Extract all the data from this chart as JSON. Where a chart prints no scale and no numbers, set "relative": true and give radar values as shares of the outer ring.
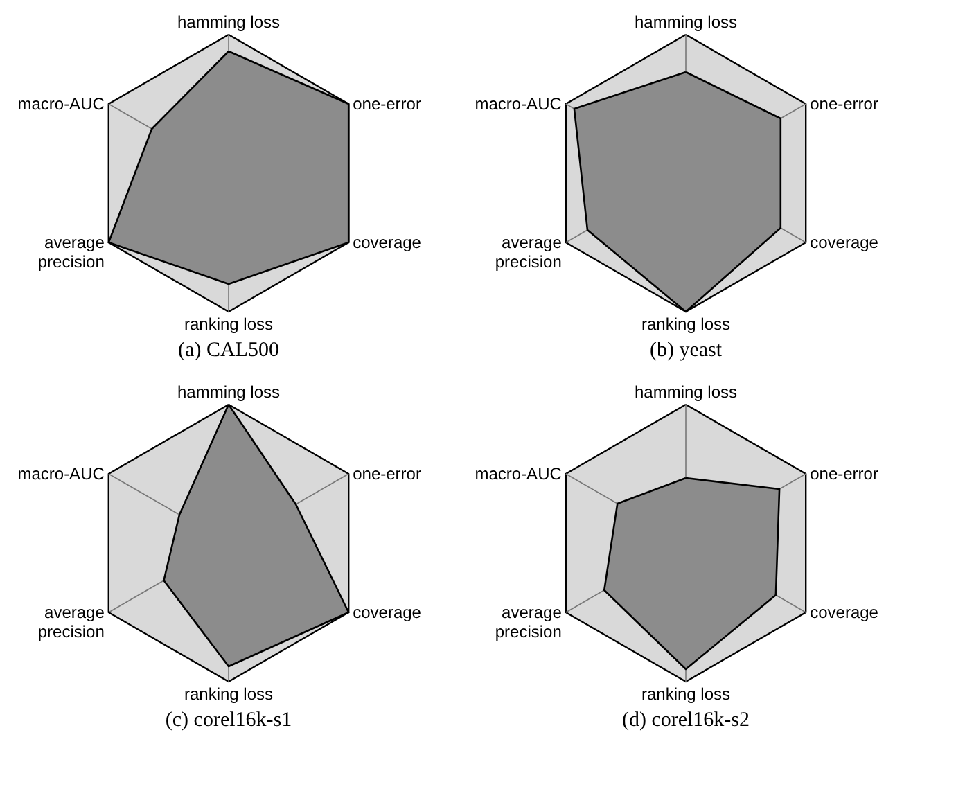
{
  "chart_data": [
    {
      "type": "radar",
      "title": "(a) CAL500",
      "relative": true,
      "categories": [
        "hamming loss",
        "one-error",
        "coverage",
        "ranking loss",
        "average precision",
        "macro-AUC"
      ],
      "series": [
        {
          "color": "#8c8c8c",
          "values": [
            0.88,
            1.0,
            1.0,
            0.8,
            1.0,
            0.64
          ]
        }
      ]
    },
    {
      "type": "radar",
      "title": "(b) yeast",
      "relative": true,
      "categories": [
        "hamming loss",
        "one-error",
        "coverage",
        "ranking loss",
        "average precision",
        "macro-AUC"
      ],
      "series": [
        {
          "color": "#8c8c8c",
          "values": [
            0.73,
            0.79,
            0.79,
            1.0,
            0.82,
            0.93
          ]
        }
      ]
    },
    {
      "type": "radar",
      "title": "(c) corel16k-s1",
      "relative": true,
      "categories": [
        "hamming loss",
        "one-error",
        "coverage",
        "ranking loss",
        "average precision",
        "macro-AUC"
      ],
      "series": [
        {
          "color": "#8c8c8c",
          "values": [
            1.0,
            0.56,
            1.0,
            0.89,
            0.54,
            0.41
          ]
        }
      ]
    },
    {
      "type": "radar",
      "title": "(d) corel16k-s2",
      "relative": true,
      "categories": [
        "hamming loss",
        "one-error",
        "coverage",
        "ranking loss",
        "average precision",
        "macro-AUC"
      ],
      "series": [
        {
          "color": "#8c8c8c",
          "values": [
            0.47,
            0.78,
            0.75,
            0.91,
            0.68,
            0.57
          ]
        }
      ]
    }
  ]
}
